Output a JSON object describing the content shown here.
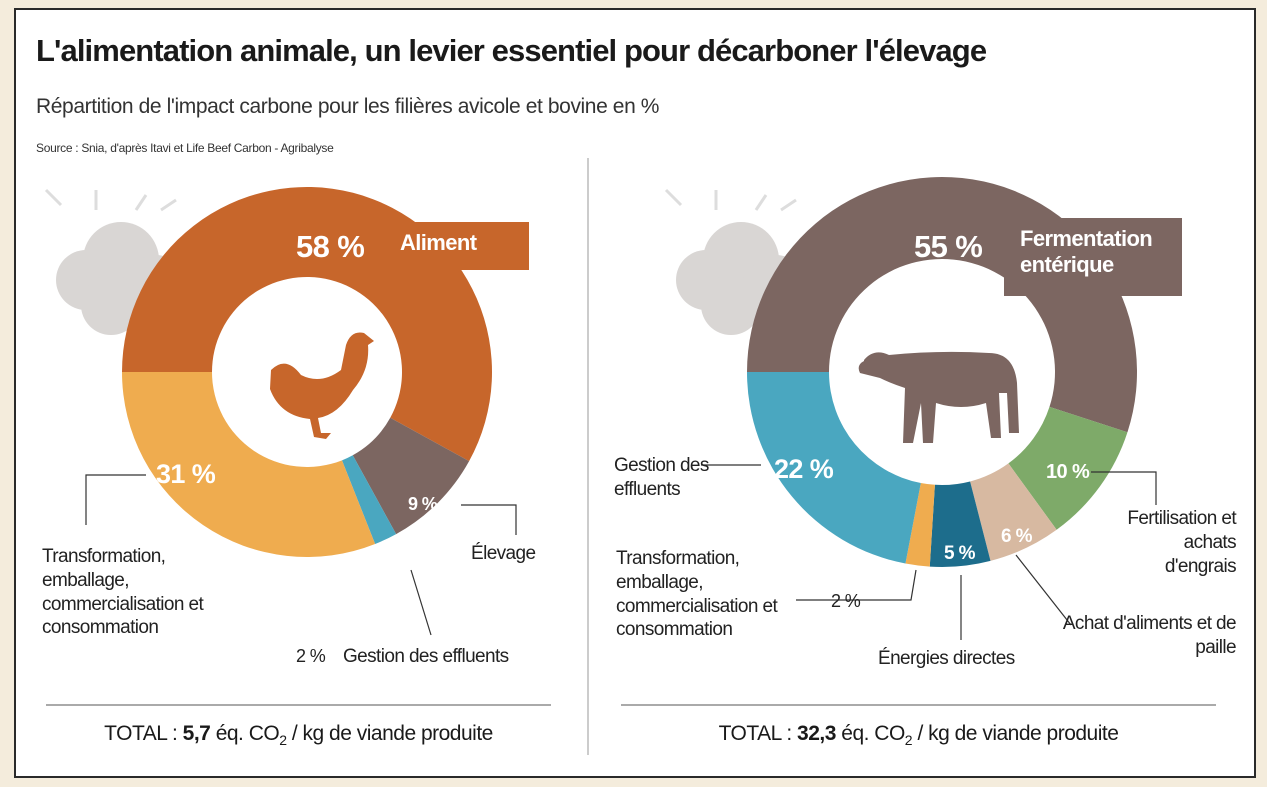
{
  "title": "L'alimentation animale, un levier essentiel pour décarboner l'élevage",
  "subtitle": "Répartition de l'impact carbone pour les filières avicole et bovine en %",
  "source": "Source : Snia, d'après Itavi et Life Beef Carbon - Agribalyse",
  "chart_data": [
    {
      "type": "donut",
      "categories": [
        "Aliment",
        "Élevage",
        "Gestion des effluents",
        "Transformation, emballage, commercialisation et consommation"
      ],
      "values": [
        58,
        9,
        2,
        31
      ],
      "value_labels": [
        "58 %",
        "9 %",
        "2 %",
        "31 %"
      ],
      "colors": [
        "#c7662b",
        "#7c6661",
        "#4aa7c0",
        "#efac4f"
      ],
      "total_label": "TOTAL :",
      "total_value": "5,7",
      "total_unit": "éq. CO",
      "total_unit_sub": "2",
      "total_unit_rest": "/ kg de viande produite"
    },
    {
      "type": "donut",
      "categories": [
        "Fermentation entérique",
        "Fertilisation et achats d'engrais",
        "Achat d'aliments et de paille",
        "Énergies directes",
        "Transformation, emballage, commercialisation et consommation",
        "Gestion des effluents"
      ],
      "values": [
        55,
        10,
        6,
        5,
        2,
        22
      ],
      "value_labels": [
        "55 %",
        "10 %",
        "6 %",
        "5 %",
        "2 %",
        "22 %"
      ],
      "colors": [
        "#7c6661",
        "#7eaa69",
        "#d7b9a1",
        "#1d6d8c",
        "#efac4f",
        "#4aa7c0"
      ],
      "total_label": "TOTAL :",
      "total_value": "32,3",
      "total_unit": "éq. CO",
      "total_unit_sub": "2",
      "total_unit_rest": "/ kg de viande produite"
    }
  ]
}
